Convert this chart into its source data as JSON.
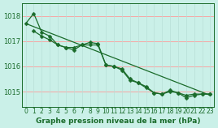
{
  "title": "Graphe pression niveau de la mer (hPa)",
  "bg_color": "#caf0e8",
  "line_color": "#1a6b2a",
  "grid_color_h": "#ff9999",
  "grid_color_v": "#b8e0d8",
  "x": [
    0,
    1,
    2,
    3,
    4,
    5,
    6,
    7,
    8,
    9,
    10,
    11,
    12,
    13,
    14,
    15,
    16,
    17,
    18,
    19,
    20,
    21,
    22,
    23
  ],
  "series1": [
    1017.7,
    1018.1,
    1017.35,
    1017.2,
    1016.85,
    1016.75,
    1016.75,
    1016.85,
    1016.85,
    1016.85,
    1016.05,
    1016.0,
    1015.85,
    1015.45,
    1015.35,
    1015.15,
    1014.95,
    1014.9,
    1015.05,
    1014.95,
    1014.75,
    1014.85,
    1014.9,
    1014.9
  ],
  "series2": [
    null,
    1017.4,
    1017.2,
    1017.05,
    1016.85,
    1016.75,
    1016.65,
    1016.85,
    1016.95,
    1016.9,
    1016.05,
    1016.0,
    1015.9,
    1015.5,
    1015.35,
    1015.2,
    1014.95,
    1014.9,
    1015.0,
    1014.95,
    1014.85,
    1014.9,
    1014.9,
    1014.9
  ],
  "trend_x": [
    0,
    23
  ],
  "trend_y": [
    1017.7,
    1014.85
  ],
  "ylim": [
    1014.4,
    1018.5
  ],
  "yticks": [
    1015,
    1016,
    1017,
    1018
  ],
  "xlim": [
    -0.5,
    23.5
  ],
  "tick_fontsize": 6,
  "title_fontsize": 6.5,
  "markersize": 2.5,
  "linewidth": 0.9
}
